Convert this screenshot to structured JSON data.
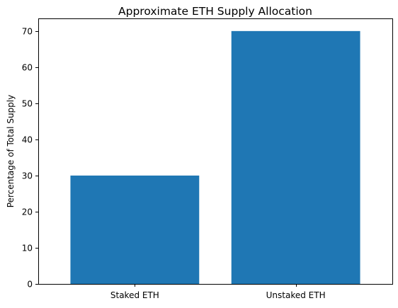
{
  "chart_data": {
    "type": "bar",
    "title": "Approximate ETH Supply Allocation",
    "xlabel": "",
    "ylabel": "Percentage of Total Supply",
    "categories": [
      "Staked ETH",
      "Unstaked ETH"
    ],
    "values": [
      30,
      70
    ],
    "ylim": [
      0,
      73.5
    ],
    "yticks": [
      0,
      10,
      20,
      30,
      40,
      50,
      60,
      70
    ],
    "grid": false,
    "bar_color": "#1f77b4"
  }
}
